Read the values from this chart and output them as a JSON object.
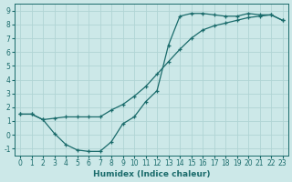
{
  "xlabel": "Humidex (Indice chaleur)",
  "ylabel": "",
  "bg_color": "#cce8e8",
  "grid_color": "#b0d4d4",
  "line_color": "#1a6b6b",
  "xlim": [
    -0.5,
    23.5
  ],
  "ylim": [
    -1.5,
    9.5
  ],
  "xticks": [
    0,
    1,
    2,
    3,
    4,
    5,
    6,
    7,
    8,
    9,
    10,
    11,
    12,
    13,
    14,
    15,
    16,
    17,
    18,
    19,
    20,
    21,
    22,
    23
  ],
  "yticks": [
    -1,
    0,
    1,
    2,
    3,
    4,
    5,
    6,
    7,
    8,
    9
  ],
  "curve1_x": [
    0,
    1,
    2,
    3,
    4,
    5,
    6,
    7,
    8,
    9,
    10,
    11,
    12,
    13,
    14,
    15,
    16,
    17,
    18,
    19,
    20,
    21,
    22,
    23
  ],
  "curve1_y": [
    1.5,
    1.5,
    1.1,
    0.1,
    -0.7,
    -1.1,
    -1.2,
    -1.2,
    -0.5,
    0.8,
    1.3,
    2.4,
    3.2,
    6.5,
    8.6,
    8.8,
    8.8,
    8.7,
    8.6,
    8.6,
    8.8,
    8.7,
    8.7,
    8.3
  ],
  "curve2_x": [
    0,
    1,
    2,
    3,
    4,
    5,
    6,
    7,
    8,
    9,
    10,
    11,
    12,
    13,
    14,
    15,
    16,
    17,
    18,
    19,
    20,
    21,
    22,
    23
  ],
  "curve2_y": [
    1.5,
    1.5,
    1.1,
    1.2,
    1.3,
    1.3,
    1.3,
    1.3,
    1.8,
    2.2,
    2.8,
    3.5,
    4.4,
    5.3,
    6.2,
    7.0,
    7.6,
    7.9,
    8.1,
    8.3,
    8.5,
    8.6,
    8.7,
    8.3
  ]
}
